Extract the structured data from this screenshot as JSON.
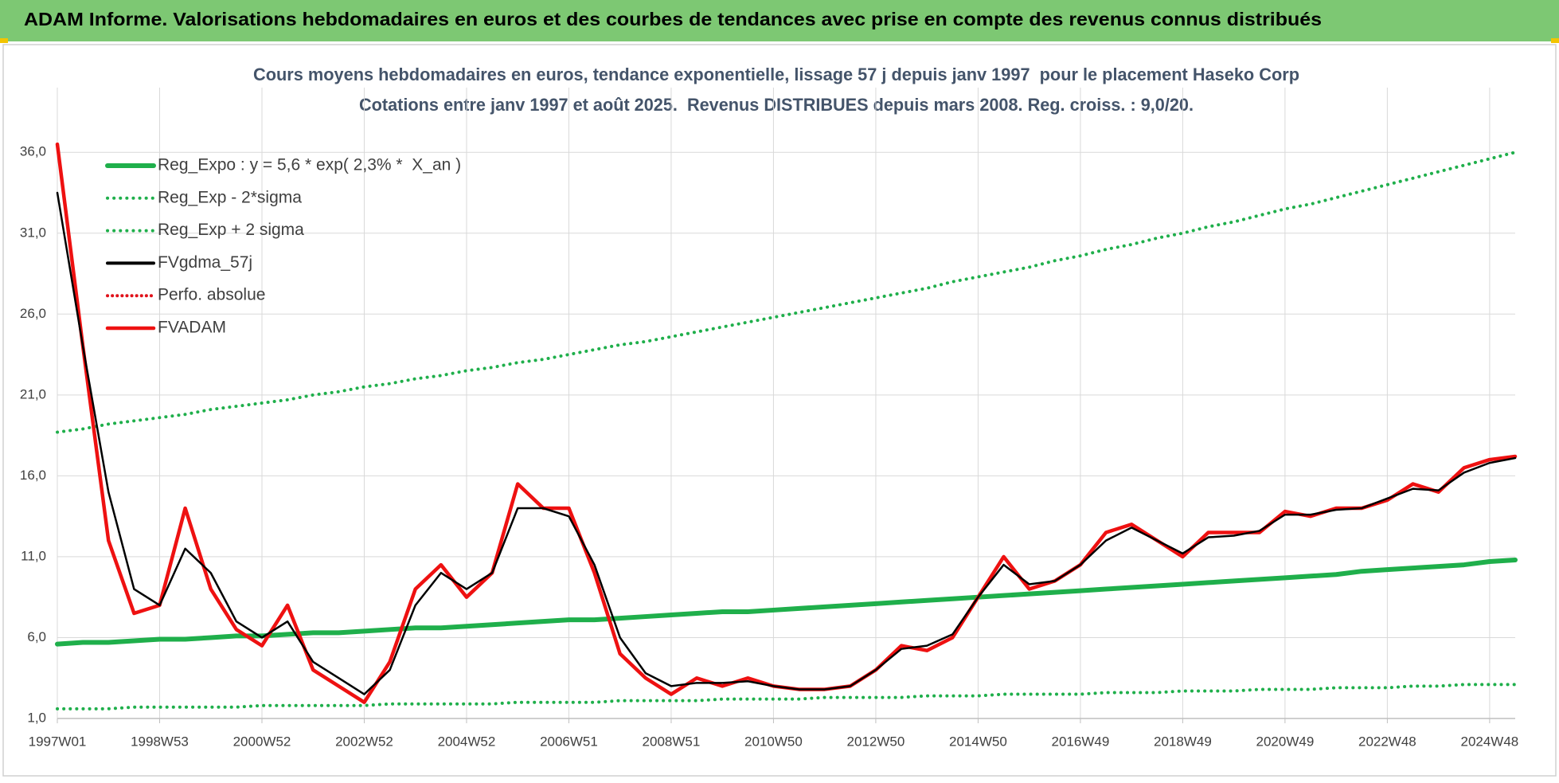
{
  "page_title": "ADAM Informe. Valorisations hebdomadaires en euros et des courbes de tendances avec prise en compte des revenus connus distribués",
  "chart_data": {
    "type": "line",
    "title": "Cours moyens hebdomadaires en euros, tendance exponentielle, lissage 57 j depuis janv 1997  pour le placement Haseko Corp",
    "subtitle": "Cotations entre janv 1997 et août 2025.  Revenus DISTRIBUES depuis mars 2008. Reg. croiss. : 9,0/20.",
    "categories": [
      "1997W01",
      null,
      null,
      null,
      "1998W53",
      null,
      null,
      null,
      "2000W52",
      null,
      null,
      null,
      "2002W52",
      null,
      null,
      null,
      "2004W52",
      null,
      null,
      null,
      "2006W51",
      null,
      null,
      null,
      "2008W51",
      null,
      null,
      null,
      "2010W50",
      null,
      null,
      null,
      "2012W50",
      null,
      null,
      null,
      "2014W50",
      null,
      null,
      null,
      "2016W49",
      null,
      null,
      null,
      "2018W49",
      null,
      null,
      null,
      "2020W49",
      null,
      null,
      null,
      "2022W48",
      null,
      null,
      null,
      "2024W48",
      null
    ],
    "ylim": [
      1,
      40
    ],
    "yticks": [
      {
        "value": 1,
        "label": "1,0"
      },
      {
        "value": 6,
        "label": "6,0"
      },
      {
        "value": 11,
        "label": "11,0"
      },
      {
        "value": 16,
        "label": "16,0"
      },
      {
        "value": 21,
        "label": "21,0"
      },
      {
        "value": 26,
        "label": "26,0"
      },
      {
        "value": 31,
        "label": "31,0"
      },
      {
        "value": 36,
        "label": "36,0"
      }
    ],
    "grid": true,
    "legend": "upper left",
    "series": [
      {
        "name": "Reg_Expo : y = 5,6 * exp( 2,3% *  X_an )",
        "color": "#1faf4b",
        "style": "solid",
        "width": 6,
        "values": [
          5.6,
          5.7,
          5.7,
          5.8,
          5.9,
          5.9,
          6.0,
          6.1,
          6.1,
          6.2,
          6.3,
          6.3,
          6.4,
          6.5,
          6.6,
          6.6,
          6.7,
          6.8,
          6.9,
          7.0,
          7.1,
          7.1,
          7.2,
          7.3,
          7.4,
          7.5,
          7.6,
          7.6,
          7.7,
          7.8,
          7.9,
          8.0,
          8.1,
          8.2,
          8.3,
          8.4,
          8.5,
          8.6,
          8.7,
          8.8,
          8.9,
          9.0,
          9.1,
          9.2,
          9.3,
          9.4,
          9.5,
          9.6,
          9.7,
          9.8,
          9.9,
          10.1,
          10.2,
          10.3,
          10.4,
          10.5,
          10.7,
          10.8
        ]
      },
      {
        "name": "Reg_Exp - 2*sigma",
        "color": "#1faf4b",
        "style": "dotted",
        "width": 4,
        "values": [
          1.6,
          1.6,
          1.6,
          1.7,
          1.7,
          1.7,
          1.7,
          1.7,
          1.8,
          1.8,
          1.8,
          1.8,
          1.8,
          1.9,
          1.9,
          1.9,
          1.9,
          1.9,
          2.0,
          2.0,
          2.0,
          2.0,
          2.1,
          2.1,
          2.1,
          2.1,
          2.2,
          2.2,
          2.2,
          2.2,
          2.3,
          2.3,
          2.3,
          2.3,
          2.4,
          2.4,
          2.4,
          2.5,
          2.5,
          2.5,
          2.5,
          2.6,
          2.6,
          2.6,
          2.7,
          2.7,
          2.7,
          2.8,
          2.8,
          2.8,
          2.9,
          2.9,
          2.9,
          3.0,
          3.0,
          3.1,
          3.1,
          3.1
        ]
      },
      {
        "name": "Reg_Exp + 2 sigma",
        "color": "#1faf4b",
        "style": "dotted",
        "width": 4,
        "values": [
          18.7,
          18.9,
          19.2,
          19.4,
          19.6,
          19.8,
          20.1,
          20.3,
          20.5,
          20.7,
          21.0,
          21.2,
          21.5,
          21.7,
          22.0,
          22.2,
          22.5,
          22.7,
          23.0,
          23.2,
          23.5,
          23.8,
          24.1,
          24.3,
          24.6,
          24.9,
          25.2,
          25.5,
          25.8,
          26.1,
          26.4,
          26.7,
          27.0,
          27.3,
          27.6,
          28.0,
          28.3,
          28.6,
          28.9,
          29.3,
          29.6,
          30.0,
          30.3,
          30.7,
          31.0,
          31.4,
          31.7,
          32.1,
          32.5,
          32.8,
          33.2,
          33.6,
          34.0,
          34.4,
          34.8,
          35.2,
          35.6,
          36.0
        ]
      },
      {
        "name": "FVgdma_57j",
        "color": "#000000",
        "style": "solid",
        "width": 2.5,
        "values": [
          33.5,
          24,
          15,
          9,
          8,
          11.5,
          10,
          7,
          6,
          7,
          4.5,
          3.5,
          2.5,
          4,
          8,
          10,
          9,
          10,
          14,
          14,
          13.5,
          10.5,
          6,
          3.8,
          3,
          3.2,
          3.2,
          3.3,
          3,
          2.8,
          2.8,
          3,
          4,
          5.3,
          5.5,
          6.2,
          8.5,
          10.5,
          9.3,
          9.5,
          10.5,
          12,
          12.8,
          12,
          11.2,
          12.2,
          12.3,
          12.6,
          13.6,
          13.6,
          13.9,
          14,
          14.6,
          15.2,
          15.1,
          16.2,
          16.8,
          17.1
        ]
      },
      {
        "name": "Perfo. absolue",
        "color": "#e0121a",
        "style": "dotted",
        "width": 3,
        "values": [
          null,
          null,
          null,
          null,
          null,
          null,
          null,
          null,
          null,
          null,
          null,
          null,
          null,
          null,
          null,
          null,
          null,
          null,
          null,
          null,
          null,
          null,
          null,
          null,
          null,
          null,
          null,
          null,
          null,
          null,
          null,
          null,
          null,
          null,
          null,
          null,
          null,
          null,
          null,
          null,
          null,
          null,
          null,
          null,
          null,
          null,
          null,
          null,
          null,
          null,
          null,
          null,
          null,
          null,
          null,
          null,
          null,
          null
        ]
      },
      {
        "name": "FVADAM",
        "color": "#ee1111",
        "style": "solid",
        "width": 4.5,
        "values": [
          36.5,
          24,
          12,
          7.5,
          8,
          14,
          9,
          6.5,
          5.5,
          8,
          4,
          3,
          2,
          4.5,
          9,
          10.5,
          8.5,
          10,
          15.5,
          14,
          14,
          10,
          5,
          3.5,
          2.5,
          3.5,
          3,
          3.5,
          3,
          2.8,
          2.8,
          3,
          4,
          5.5,
          5.2,
          6,
          8.5,
          11,
          9,
          9.5,
          10.5,
          12.5,
          13,
          12,
          11,
          12.5,
          12.5,
          12.5,
          13.8,
          13.5,
          14,
          14,
          14.5,
          15.5,
          15,
          16.5,
          17,
          17.2
        ]
      }
    ],
    "draw_order": [
      0,
      1,
      2,
      4,
      5,
      3
    ]
  }
}
